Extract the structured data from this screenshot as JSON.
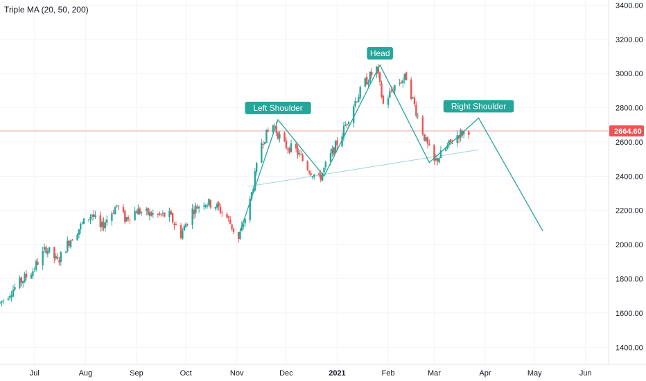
{
  "indicator_legend": "Triple MA (20, 50, 200)",
  "colors": {
    "up": "#26a69a",
    "down": "#ef5350",
    "pattern": "#26a69a",
    "grid": "#f0f3fa",
    "axis_text": "#131722",
    "last_price_line": "#f7a1a1",
    "last_price_tag": "#ef5350"
  },
  "chart_data": {
    "type": "candlestick",
    "title": "",
    "xlabel": "",
    "ylabel": "",
    "ylim": [
      1300,
      3430
    ],
    "grid": true,
    "y_ticks": [
      "1400.00",
      "1600.00",
      "1800.00",
      "2000.00",
      "2200.00",
      "2400.00",
      "2600.00",
      "2800.00",
      "3000.00",
      "3200.00",
      "3400.00"
    ],
    "x_ticks": [
      {
        "label": "Jul",
        "date": "2020-07-01"
      },
      {
        "label": "Aug",
        "date": "2020-08-01"
      },
      {
        "label": "Sep",
        "date": "2020-09-01"
      },
      {
        "label": "Oct",
        "date": "2020-10-01"
      },
      {
        "label": "Nov",
        "date": "2020-11-01"
      },
      {
        "label": "Dec",
        "date": "2020-12-01"
      },
      {
        "label": "2021",
        "date": "2021-01-01",
        "bold": true
      },
      {
        "label": "Feb",
        "date": "2021-02-01"
      },
      {
        "label": "Mar",
        "date": "2021-03-01"
      },
      {
        "label": "Apr",
        "date": "2021-04-01"
      },
      {
        "label": "May",
        "date": "2021-05-01"
      },
      {
        "label": "Jun",
        "date": "2021-06-01"
      }
    ],
    "x_range": [
      "2020-06-10",
      "2021-06-15"
    ],
    "last_price": "2664.60",
    "price_trend": [
      [
        "2020-06-10",
        1660
      ],
      [
        "2020-06-20",
        1760
      ],
      [
        "2020-06-30",
        1850
      ],
      [
        "2020-07-08",
        1980
      ],
      [
        "2020-07-15",
        1900
      ],
      [
        "2020-07-22",
        2020
      ],
      [
        "2020-07-30",
        2120
      ],
      [
        "2020-08-05",
        2180
      ],
      [
        "2020-08-10",
        2090
      ],
      [
        "2020-08-14",
        2150
      ],
      [
        "2020-08-20",
        2230
      ],
      [
        "2020-08-25",
        2150
      ],
      [
        "2020-09-01",
        2200
      ],
      [
        "2020-09-08",
        2180
      ],
      [
        "2020-09-15",
        2170
      ],
      [
        "2020-09-21",
        2170
      ],
      [
        "2020-09-28",
        2060
      ],
      [
        "2020-10-05",
        2200
      ],
      [
        "2020-10-12",
        2250
      ],
      [
        "2020-10-19",
        2230
      ],
      [
        "2020-10-26",
        2160
      ],
      [
        "2020-11-02",
        2030
      ],
      [
        "2020-11-09",
        2250
      ],
      [
        "2020-11-16",
        2600
      ],
      [
        "2020-11-23",
        2700
      ],
      [
        "2020-11-30",
        2580
      ],
      [
        "2020-12-07",
        2550
      ],
      [
        "2020-12-14",
        2450
      ],
      [
        "2020-12-21",
        2380
      ],
      [
        "2020-12-28",
        2520
      ],
      [
        "2021-01-04",
        2650
      ],
      [
        "2021-01-11",
        2820
      ],
      [
        "2021-01-18",
        2950
      ],
      [
        "2021-01-25",
        3030
      ],
      [
        "2021-01-29",
        2820
      ],
      [
        "2021-02-05",
        2930
      ],
      [
        "2021-02-12",
        2980
      ],
      [
        "2021-02-18",
        2780
      ],
      [
        "2021-02-24",
        2600
      ],
      [
        "2021-03-01",
        2480
      ],
      [
        "2021-03-08",
        2560
      ],
      [
        "2021-03-15",
        2640
      ],
      [
        "2021-03-22",
        2670
      ]
    ],
    "annotations": [
      {
        "label": "Left Shoulder",
        "date": "2020-11-26",
        "value": 2730
      },
      {
        "label": "Head",
        "date": "2021-01-27",
        "value": 3050
      },
      {
        "label": "Right Shoulder",
        "date": "2021-03-28",
        "value": 2740
      }
    ],
    "pattern_path": [
      [
        "2020-11-02",
        2050
      ],
      [
        "2020-11-26",
        2730
      ],
      [
        "2020-12-24",
        2400
      ],
      [
        "2021-01-27",
        3050
      ],
      [
        "2021-02-26",
        2480
      ],
      [
        "2021-03-28",
        2740
      ],
      [
        "2021-05-06",
        2080
      ]
    ],
    "neckline": [
      [
        "2020-11-08",
        2340
      ],
      [
        "2021-03-28",
        2555
      ]
    ]
  }
}
